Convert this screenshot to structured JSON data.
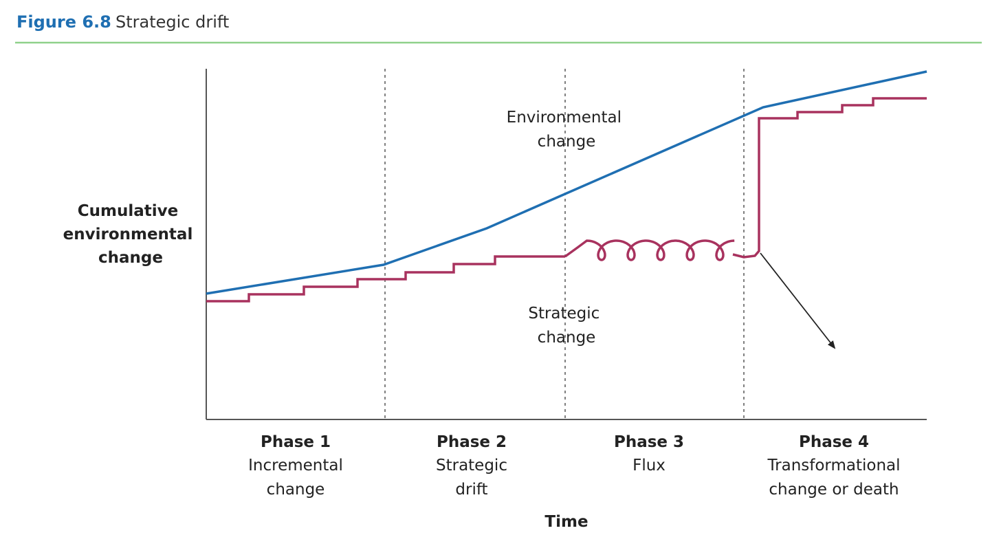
{
  "header": {
    "figure_label": "Figure 6.8",
    "title": "Strategic drift"
  },
  "y_axis_label": [
    "Cumulative",
    "environmental",
    "change"
  ],
  "x_axis_label": "Time",
  "line_labels": {
    "environmental": [
      "Environmental",
      "change"
    ],
    "strategic": [
      "Strategic",
      "change"
    ]
  },
  "phases": [
    {
      "title": "Phase 1",
      "description": [
        "Incremental",
        "change"
      ]
    },
    {
      "title": "Phase 2",
      "description": [
        "Strategic",
        "drift"
      ]
    },
    {
      "title": "Phase 3",
      "description": [
        "Flux"
      ]
    },
    {
      "title": "Phase 4",
      "description": [
        "Transformational",
        "change or death"
      ]
    }
  ]
}
